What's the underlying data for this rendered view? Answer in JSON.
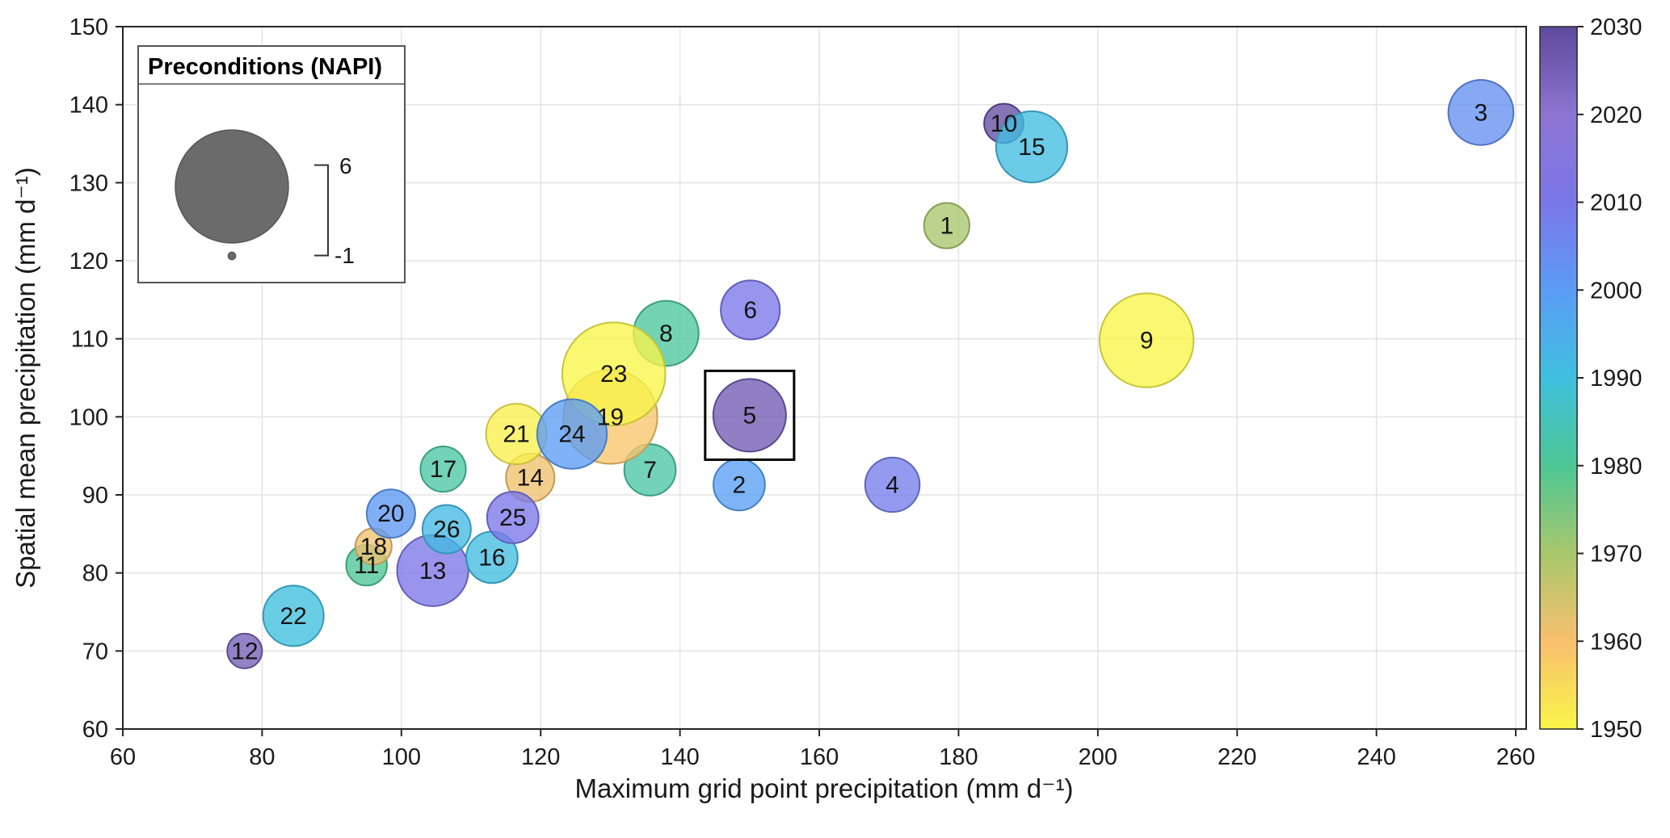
{
  "figure": {
    "background": "#ffffff"
  },
  "chart_data": {
    "type": "bubble",
    "xlabel": "Maximum grid point precipitation (mm d⁻¹)",
    "ylabel": "Spatial mean precipitation (mm d⁻¹)",
    "xlim": [
      60,
      261.5
    ],
    "ylim": [
      60,
      150
    ],
    "xticks": [
      60,
      80,
      100,
      120,
      140,
      160,
      180,
      200,
      220,
      240,
      260
    ],
    "yticks": [
      60,
      70,
      80,
      90,
      100,
      110,
      120,
      130,
      140,
      150
    ],
    "grid": true,
    "highlight_id": 5,
    "points": [
      {
        "id": 1,
        "x": 178.3,
        "y": 124.5,
        "napi": 1.5,
        "year": 1970
      },
      {
        "id": 2,
        "x": 148.5,
        "y": 91.3,
        "napi": 1.9,
        "year": 1999
      },
      {
        "id": 3,
        "x": 255.0,
        "y": 139.0,
        "napi": 2.8,
        "year": 2003
      },
      {
        "id": 4,
        "x": 170.5,
        "y": 91.3,
        "napi": 2.1,
        "year": 2008
      },
      {
        "id": 5,
        "x": 150.0,
        "y": 100.2,
        "napi": 3.3,
        "year": 2026
      },
      {
        "id": 6,
        "x": 150.1,
        "y": 113.7,
        "napi": 2.4,
        "year": 2010
      },
      {
        "id": 7,
        "x": 135.7,
        "y": 93.2,
        "napi": 1.9,
        "year": 1982
      },
      {
        "id": 8,
        "x": 138.0,
        "y": 110.7,
        "napi": 2.8,
        "year": 1981
      },
      {
        "id": 9,
        "x": 207.0,
        "y": 109.8,
        "napi": 4.7,
        "year": 1950
      },
      {
        "id": 10,
        "x": 186.5,
        "y": 137.6,
        "napi": 1.1,
        "year": 2029
      },
      {
        "id": 11,
        "x": 95.0,
        "y": 81.0,
        "napi": 1.2,
        "year": 1980
      },
      {
        "id": 12,
        "x": 77.5,
        "y": 70.0,
        "napi": 0.8,
        "year": 2025
      },
      {
        "id": 13,
        "x": 104.5,
        "y": 80.3,
        "napi": 3.2,
        "year": 2011
      },
      {
        "id": 14,
        "x": 118.5,
        "y": 92.2,
        "napi": 1.7,
        "year": 1961
      },
      {
        "id": 15,
        "x": 190.5,
        "y": 134.6,
        "napi": 3.2,
        "year": 1991
      },
      {
        "id": 16,
        "x": 113.0,
        "y": 82.0,
        "napi": 1.9,
        "year": 1991
      },
      {
        "id": 17,
        "x": 106.0,
        "y": 93.3,
        "napi": 1.5,
        "year": 1982
      },
      {
        "id": 18,
        "x": 96.0,
        "y": 83.4,
        "napi": 0.9,
        "year": 1961
      },
      {
        "id": 19,
        "x": 130.0,
        "y": 100.0,
        "napi": 4.7,
        "year": 1959
      },
      {
        "id": 20,
        "x": 98.5,
        "y": 87.6,
        "napi": 1.7,
        "year": 2001
      },
      {
        "id": 21,
        "x": 116.5,
        "y": 97.8,
        "napi": 2.5,
        "year": 1951
      },
      {
        "id": 22,
        "x": 84.5,
        "y": 74.5,
        "napi": 2.5,
        "year": 1990
      },
      {
        "id": 23,
        "x": 130.5,
        "y": 105.5,
        "napi": 5.3,
        "year": 1950
      },
      {
        "id": 24,
        "x": 124.5,
        "y": 97.8,
        "napi": 3.1,
        "year": 2000
      },
      {
        "id": 25,
        "x": 116.0,
        "y": 87.1,
        "napi": 1.9,
        "year": 2010
      },
      {
        "id": 26,
        "x": 106.5,
        "y": 85.6,
        "napi": 1.7,
        "year": 1992
      }
    ],
    "size_legend": {
      "title": "Preconditions (NAPI)",
      "max_label": "6",
      "min_label": "-1",
      "max_value": 6,
      "min_value": -1,
      "circle_color": "#6b6b6b"
    },
    "colorbar": {
      "min": 1950,
      "max": 2030,
      "ticks": [
        2030,
        2020,
        2010,
        2000,
        1990,
        1980,
        1970,
        1960,
        1950
      ]
    },
    "colormap": [
      {
        "year": 1950,
        "color": "#f9f549"
      },
      {
        "year": 1960,
        "color": "#f8c06e"
      },
      {
        "year": 1970,
        "color": "#a8c76b"
      },
      {
        "year": 1980,
        "color": "#4dc795"
      },
      {
        "year": 1990,
        "color": "#3fc0de"
      },
      {
        "year": 2000,
        "color": "#5b9cf5"
      },
      {
        "year": 2010,
        "color": "#7b77e9"
      },
      {
        "year": 2020,
        "color": "#8d74d1"
      },
      {
        "year": 2030,
        "color": "#5e4a9c"
      }
    ]
  }
}
